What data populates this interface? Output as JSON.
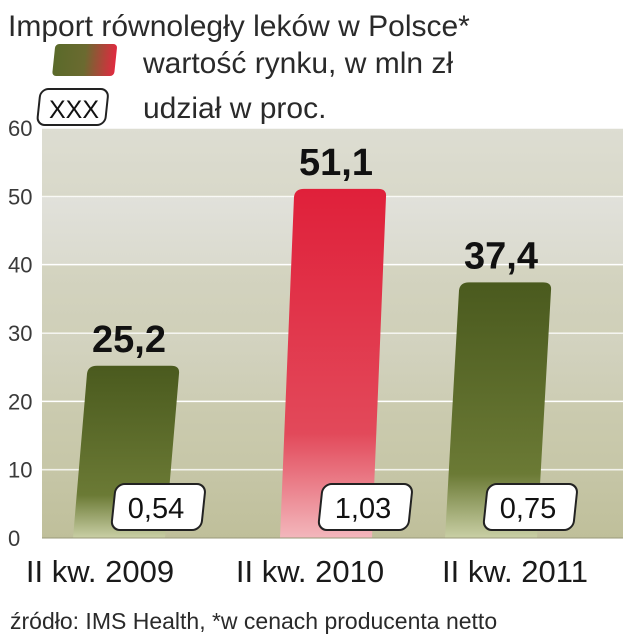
{
  "chart_data": {
    "type": "bar",
    "title": "Import równoległy leków w Polsce*",
    "legend": {
      "value_label": "wartość rynku, w mln zł",
      "share_box_text": "XXX",
      "share_label": "udział w proc."
    },
    "categories": [
      "II kw. 2009",
      "II kw. 2010",
      "II kw. 2011"
    ],
    "values": [
      25.2,
      51.1,
      37.4
    ],
    "value_labels": [
      "25,2",
      "51,1",
      "37,4"
    ],
    "shares": [
      "0,54",
      "1,03",
      "0,75"
    ],
    "highlight_index": 1,
    "ylim": [
      0,
      60
    ],
    "yticks": [
      0,
      10,
      20,
      30,
      40,
      50,
      60
    ],
    "colors": {
      "bar": "#5a6a2a",
      "bar_dark": "#3e4a1a",
      "highlight": "#e02a40",
      "highlight_dark": "#b81a30",
      "band": "#e6e6d2",
      "band_alt": "#d0d0b4"
    },
    "source": "źródło: IMS Health, *w cenach producenta netto"
  }
}
